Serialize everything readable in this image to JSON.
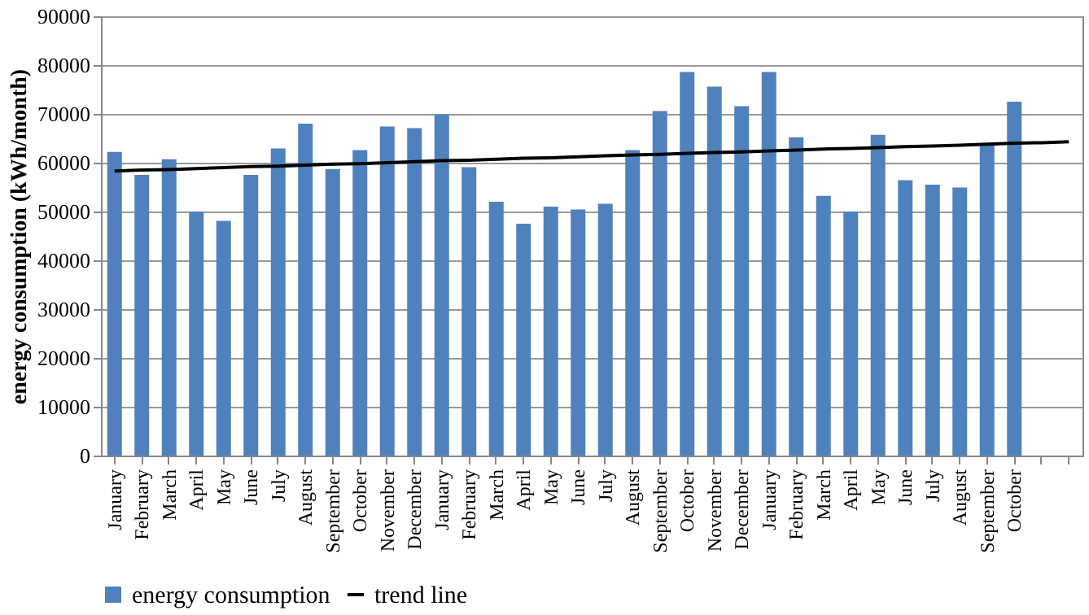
{
  "chart_data": {
    "type": "bar",
    "ylabel": "energy consumption (kWh/month)",
    "categories": [
      "January",
      "February",
      "March",
      "April",
      "May",
      "June",
      "July",
      "August",
      "September",
      "October",
      "November",
      "December",
      "January",
      "February",
      "March",
      "April",
      "May",
      "June",
      "July",
      "August",
      "September",
      "October",
      "November",
      "December",
      "January",
      "February",
      "March",
      "April",
      "May",
      "June",
      "July",
      "August",
      "September",
      "October",
      null,
      null
    ],
    "series": [
      {
        "name": "energy consumption",
        "color": "#4f81bd",
        "values": [
          62200,
          57500,
          60700,
          50000,
          48100,
          57500,
          62900,
          68000,
          58700,
          62600,
          67400,
          67100,
          69900,
          59100,
          52000,
          47500,
          51000,
          50400,
          51600,
          62600,
          70600,
          78600,
          75600,
          71600,
          78600,
          65200,
          53200,
          50000,
          65700,
          56400,
          55500,
          54900,
          63600,
          72500,
          null,
          null
        ]
      },
      {
        "name": "trend line",
        "type": "line",
        "color": "#000000",
        "values": [
          58300,
          58500,
          58600,
          58800,
          59000,
          59200,
          59300,
          59500,
          59700,
          59800,
          60000,
          60200,
          60400,
          60500,
          60700,
          60900,
          61000,
          61200,
          61400,
          61600,
          61700,
          61900,
          62100,
          62200,
          62400,
          62600,
          62800,
          62900,
          63100,
          63300,
          63400,
          63600,
          63800,
          64000,
          64100,
          64300
        ]
      }
    ],
    "ylim": [
      0,
      90000
    ],
    "yticks": [
      0,
      10000,
      20000,
      30000,
      40000,
      50000,
      60000,
      70000,
      80000,
      90000
    ],
    "grid": "y",
    "legend": "bottom",
    "marker": "none",
    "line_style": "solid"
  }
}
